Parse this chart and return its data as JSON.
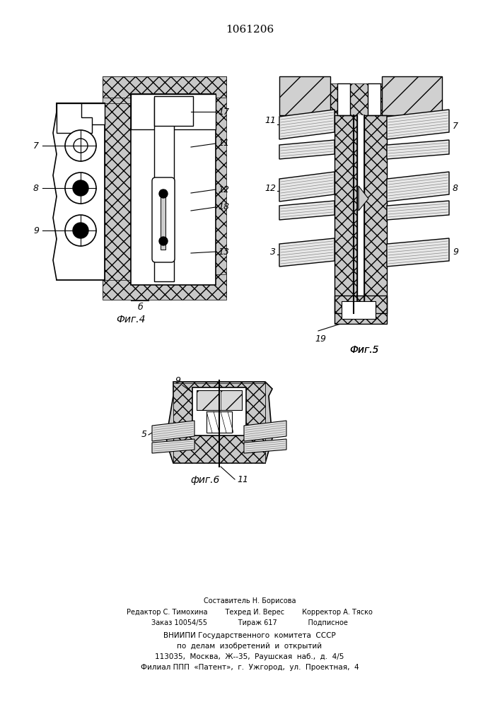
{
  "patent_number": "1061206",
  "fig4_label": "Фиг.4",
  "fig5_label": "Фиг.5",
  "fig6_label": "фиг.6",
  "fig6_note": "11",
  "fig4_b_label": "б",
  "footer_lines": [
    "Составитель Н. Борисова",
    "Редактор С. Тимохина        Техред И. Верес        Корректор А. Тяско",
    "Заказ 10054/55              Тираж 617              Подписное",
    "ВНИИПИ Государственного  комитета  СССР",
    "по  делам  изобретений  и  открытий",
    "113035,  Москва,  Ж--35,  Раушская  наб.,  д.  4/5",
    "Филиал ППП  «Патент»,  г.  Ужгород,  ул.  Проектная,  4"
  ],
  "bg_color": "#ffffff"
}
